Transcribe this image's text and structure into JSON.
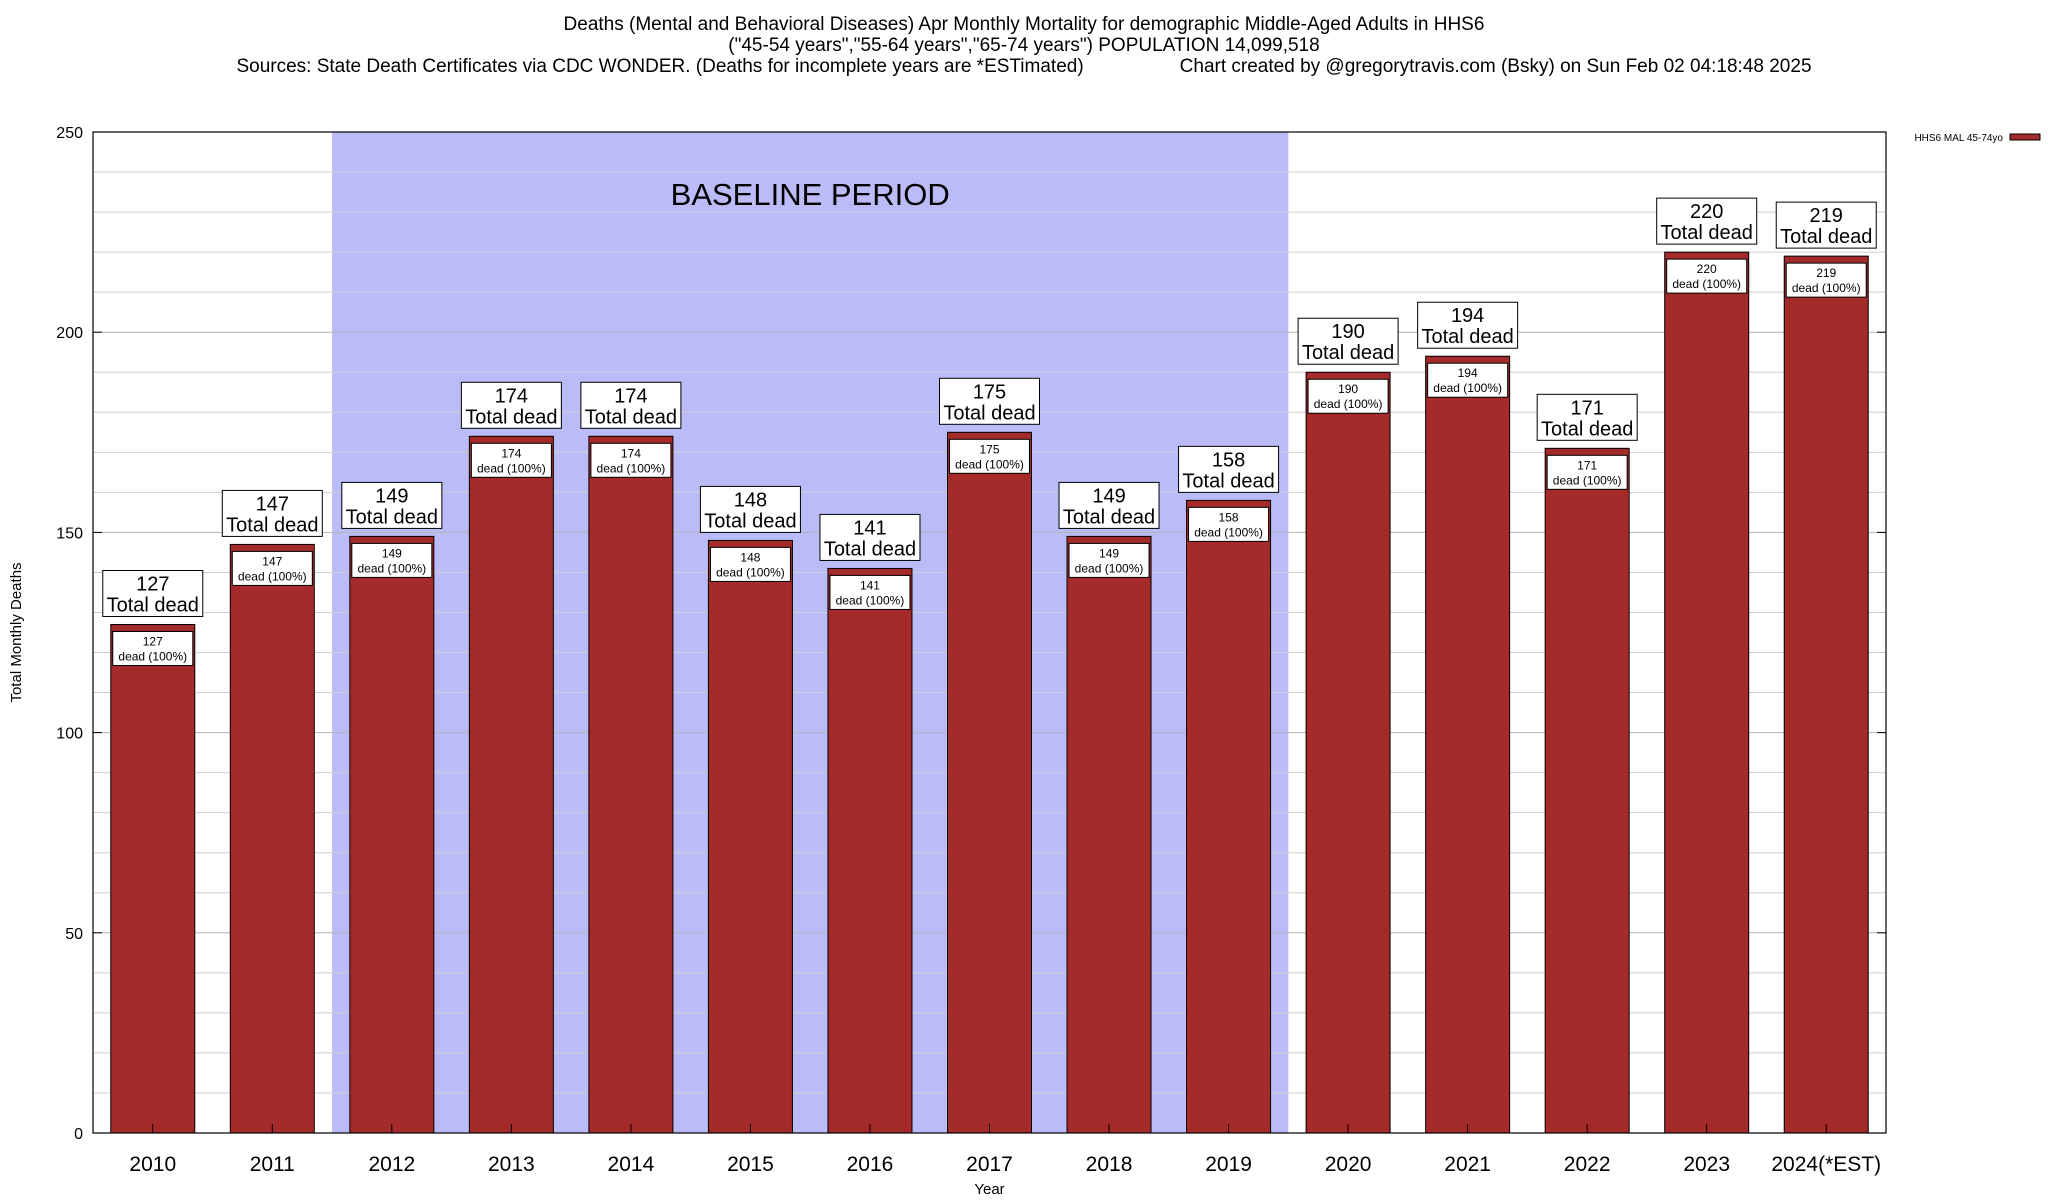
{
  "chart_data": {
    "type": "bar",
    "title": "Deaths (Mental and Behavioral Diseases) Apr Monthly Mortality for demographic Middle-Aged Adults in HHS6",
    "subtitle": "(\"45-54 years\",\"55-64 years\",\"65-74 years\") POPULATION 14,099,518",
    "sources": "Sources: State Death Certificates via CDC WONDER. (Deaths for incomplete years are *ESTimated)",
    "credit": "Chart created by @gregorytravis.com (Bsky) on Sun Feb 02 04:18:48 2025",
    "xlabel": "Year",
    "ylabel": "Total Monthly Deaths",
    "ylim": [
      0,
      250
    ],
    "yticks": [
      0,
      50,
      100,
      150,
      200,
      250
    ],
    "grid": true,
    "legend": {
      "label": "HHS6 MAL 45-74yo",
      "position": "top-right",
      "color": "#a52a2a"
    },
    "baseline": {
      "label": "BASELINE PERIOD",
      "from": "2012",
      "to": "2019",
      "color": "#bbbbf8"
    },
    "categories": [
      "2010",
      "2011",
      "2012",
      "2013",
      "2014",
      "2015",
      "2016",
      "2017",
      "2018",
      "2019",
      "2020",
      "2021",
      "2022",
      "2023",
      "2024(*EST)"
    ],
    "values": [
      127,
      147,
      149,
      174,
      174,
      148,
      141,
      175,
      149,
      158,
      190,
      194,
      171,
      220,
      219
    ],
    "total_label": "Total dead",
    "inner_label": "dead (100%)",
    "bar_color": "#a52a2a"
  }
}
